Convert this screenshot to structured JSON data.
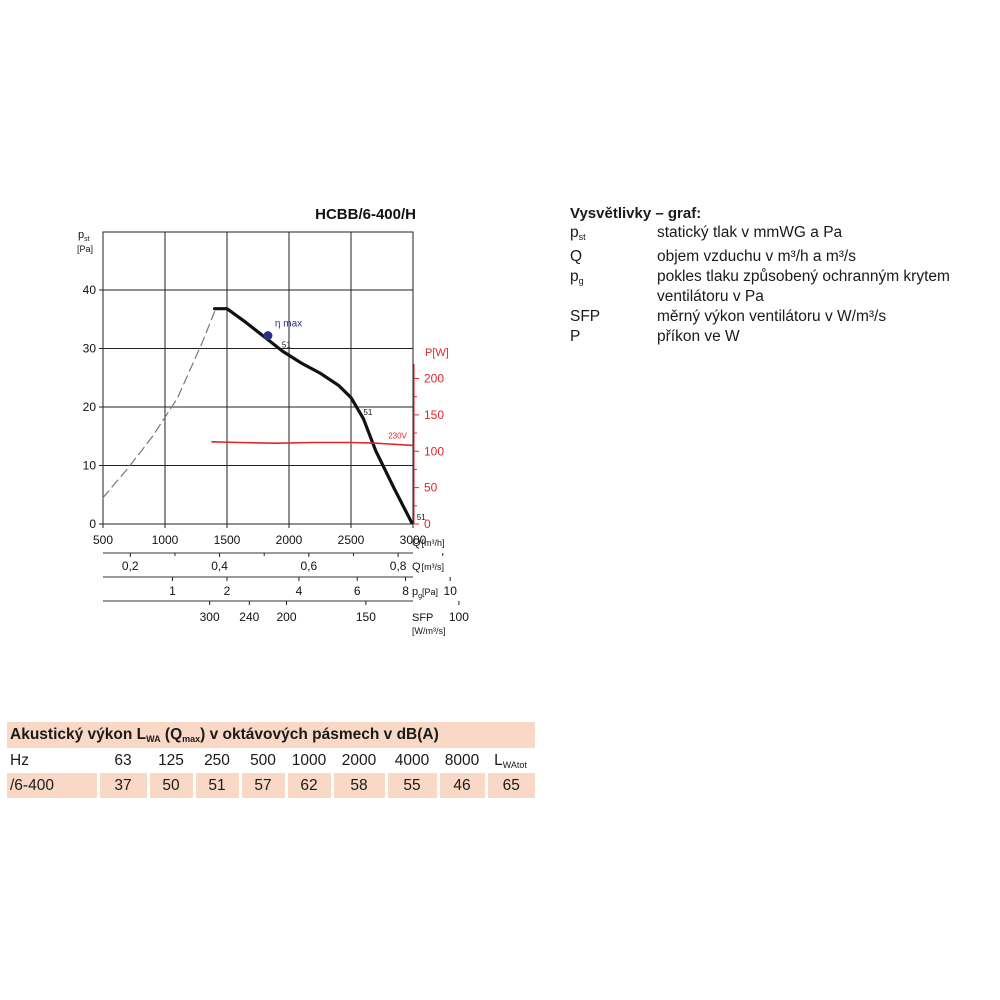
{
  "chart_data": {
    "type": "line",
    "title": "HCBB/6-400/H",
    "y_axis": {
      "label": "p",
      "sub": "st",
      "unit": "[Pa]",
      "range": [
        0,
        40
      ],
      "ticks": [
        "0",
        "10",
        "20",
        "30",
        "40"
      ]
    },
    "y2_axis": {
      "label": "P[W]",
      "range": [
        0,
        250
      ],
      "ticks": [
        "0",
        "50",
        "100",
        "150",
        "200"
      ],
      "color": "#e0262b"
    },
    "x_axis": {
      "label": "Q",
      "unit": "[m³/h]",
      "range": [
        500,
        3000
      ],
      "ticks": [
        "500",
        "1000",
        "1500",
        "2000",
        "2500",
        "3000"
      ]
    },
    "secondary_scales": [
      {
        "label": "Q",
        "unit": "[m³/s]",
        "ticks": [
          "0,2",
          "0,4",
          "0,6",
          "0,8"
        ]
      },
      {
        "label": "p",
        "sub": "g",
        "unit": "[Pa]",
        "ticks": [
          "1",
          "2",
          "4",
          "6",
          "8",
          "10"
        ]
      },
      {
        "label": "SFP",
        "unit": "[W/m³/s]",
        "ticks": [
          "300",
          "240",
          "200",
          "150",
          "100"
        ]
      }
    ],
    "grid": true,
    "series": [
      {
        "role": "pressure",
        "color": "#111111",
        "x": [
          1400,
          1500,
          1650,
          1800,
          1950,
          2100,
          2250,
          2400,
          2500,
          2600,
          2700,
          2850,
          2990
        ],
        "y": [
          36.8,
          36.8,
          34.5,
          32.0,
          29.5,
          27.5,
          25.8,
          23.7,
          21.6,
          18.0,
          12.5,
          6.0,
          0.2
        ]
      },
      {
        "role": "pressure-unstable",
        "style": "dashed",
        "color": "#777777",
        "x": [
          500,
          700,
          900,
          1100,
          1300,
          1400
        ],
        "y": [
          4.5,
          9.5,
          15.0,
          21.5,
          31.0,
          36.3
        ]
      },
      {
        "name": "230V",
        "role": "power",
        "color": "#e0262b",
        "x": [
          1380,
          1600,
          1900,
          2200,
          2500,
          2700,
          3000
        ],
        "y": [
          113,
          112,
          111,
          112,
          112,
          111,
          108
        ]
      }
    ],
    "annotations": [
      {
        "text": "η max",
        "x": 1830,
        "y": 32.2
      },
      {
        "text": "51",
        "x": 1830,
        "y": 32.2
      },
      {
        "text": "51",
        "x": 2560,
        "y": 18.5
      },
      {
        "text": "51",
        "x": 2990,
        "y": 0.2
      }
    ]
  },
  "legend": {
    "title": "Vysvětlivky – graf:",
    "items": [
      {
        "symbol": "p",
        "sub": "st",
        "text": "statický tlak v mmWG a Pa"
      },
      {
        "symbol": "Q",
        "text": "objem vzduchu v m³/h a m³/s"
      },
      {
        "symbol": "p",
        "sub": "g",
        "text": "pokles tlaku způsobený ochranným krytem ventilátoru v Pa"
      },
      {
        "symbol": "SFP",
        "text": "měrný výkon ventilátoru v W/m³/s"
      },
      {
        "symbol": "P",
        "text": "příkon ve W"
      }
    ]
  },
  "sound_table": {
    "title_a": "Akustický výkon L",
    "title_sub1": "WA",
    "title_b": " (Q",
    "title_sub2": "max",
    "title_c": ") v oktávových pásmech v dB(A)",
    "header_label": "Hz",
    "bands": [
      "63",
      "125",
      "250",
      "500",
      "1000",
      "2000",
      "4000",
      "8000"
    ],
    "total_label": "L",
    "total_sub": "WAtot",
    "row_label": "/6-400",
    "values": [
      "37",
      "50",
      "51",
      "57",
      "62",
      "58",
      "55",
      "46"
    ],
    "total_value": "65"
  }
}
